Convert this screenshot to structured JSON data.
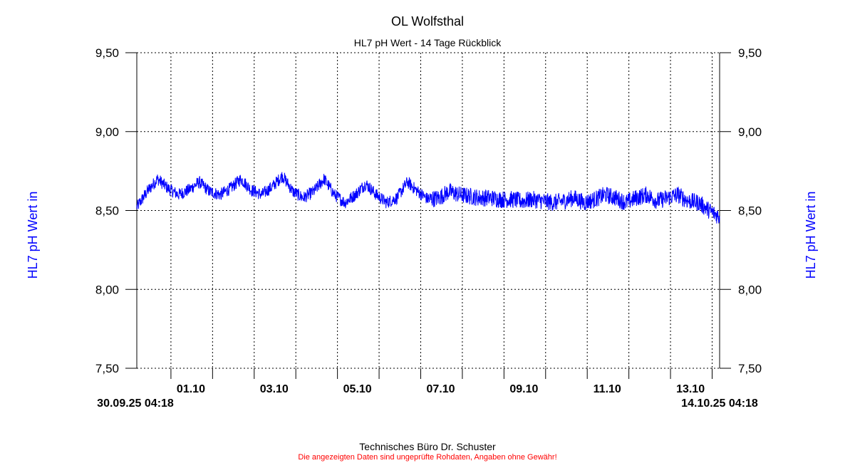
{
  "chart_data": {
    "type": "line",
    "title": "OL Wolfsthal",
    "subtitle": "HL7 pH Wert - 14 Tage Rückblick",
    "ylabel_left": "HL7 pH Wert in",
    "ylabel_right": "HL7 pH Wert in",
    "ylim": [
      7.5,
      9.5
    ],
    "y_ticks": [
      "7,50",
      "8,00",
      "8,50",
      "9,00",
      "9,50"
    ],
    "y_tick_values": [
      7.5,
      8.0,
      8.5,
      9.0,
      9.5
    ],
    "x_start": "30.09.25 04:18",
    "x_end": "14.10.25 04:18",
    "x_range_days": [
      0,
      14
    ],
    "x_tick_labels": [
      "01.10",
      "03.10",
      "05.10",
      "07.10",
      "09.10",
      "11.10",
      "13.10"
    ],
    "x_tick_label_days": [
      1.3,
      3.3,
      5.3,
      7.3,
      9.3,
      11.3,
      13.3
    ],
    "x_grid_days": [
      0.82,
      1.82,
      2.82,
      3.82,
      4.82,
      5.82,
      6.82,
      7.82,
      8.82,
      9.82,
      10.82,
      11.82,
      12.82,
      13.82
    ],
    "grid": true,
    "series": [
      {
        "name": "",
        "color": "#0000ff",
        "x_days": [
          0.0,
          0.25,
          0.5,
          0.75,
          1.0,
          1.25,
          1.5,
          1.75,
          2.0,
          2.25,
          2.5,
          2.75,
          3.0,
          3.25,
          3.5,
          3.75,
          4.0,
          4.25,
          4.5,
          4.75,
          5.0,
          5.25,
          5.5,
          5.75,
          6.0,
          6.25,
          6.5,
          6.75,
          7.0,
          7.25,
          7.5,
          7.75,
          8.0,
          8.25,
          8.5,
          8.75,
          9.0,
          9.25,
          9.5,
          9.75,
          10.0,
          10.25,
          10.5,
          10.75,
          11.0,
          11.25,
          11.5,
          11.75,
          12.0,
          12.25,
          12.5,
          12.75,
          13.0,
          13.25,
          13.5,
          13.75,
          14.0
        ],
        "y": [
          8.52,
          8.62,
          8.7,
          8.64,
          8.6,
          8.63,
          8.68,
          8.62,
          8.6,
          8.64,
          8.7,
          8.63,
          8.6,
          8.65,
          8.72,
          8.62,
          8.58,
          8.62,
          8.7,
          8.6,
          8.55,
          8.6,
          8.67,
          8.6,
          8.55,
          8.58,
          8.68,
          8.62,
          8.57,
          8.58,
          8.62,
          8.6,
          8.59,
          8.58,
          8.58,
          8.57,
          8.57,
          8.56,
          8.57,
          8.56,
          8.55,
          8.56,
          8.58,
          8.55,
          8.57,
          8.6,
          8.58,
          8.55,
          8.58,
          8.6,
          8.56,
          8.58,
          8.6,
          8.56,
          8.55,
          8.5,
          8.46
        ]
      }
    ]
  },
  "footer": {
    "company": "Technisches Büro Dr. Schuster",
    "disclaimer": "Die angezeigten Daten sind ungeprüfte Rohdaten, Angaben ohne Gewähr!"
  }
}
